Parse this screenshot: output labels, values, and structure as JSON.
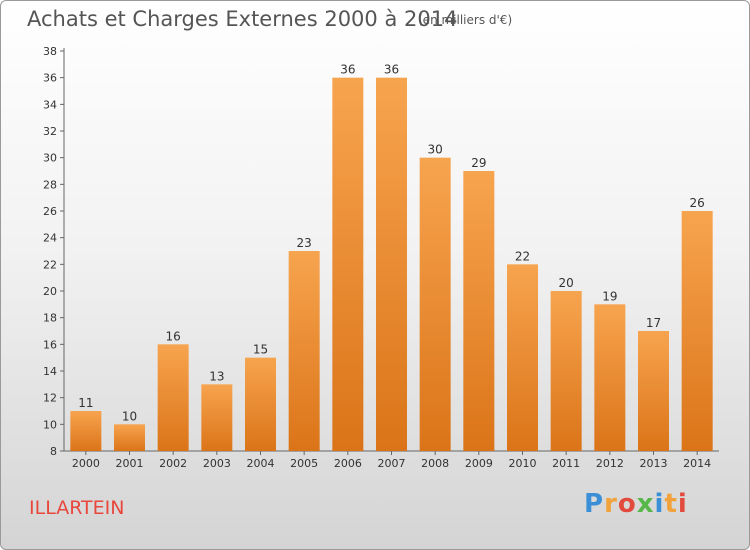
{
  "header": {
    "title": "Achats et Charges Externes 2000 à 2014",
    "subtitle": "(en milliers d'€)"
  },
  "commune": "ILLARTEIN",
  "logo": {
    "text": "Proxiti",
    "colors": [
      "#3a8fd6",
      "#f2a23a",
      "#e34a3e",
      "#57b84a"
    ]
  },
  "chart_data": {
    "type": "bar",
    "title": "Achats et Charges Externes 2000 à 2014",
    "subtitle": "(en milliers d'€)",
    "xlabel": "",
    "ylabel": "",
    "categories": [
      "2000",
      "2001",
      "2002",
      "2003",
      "2004",
      "2005",
      "2006",
      "2007",
      "2008",
      "2009",
      "2010",
      "2011",
      "2012",
      "2013",
      "2014"
    ],
    "values": [
      11,
      10,
      16,
      13,
      15,
      23,
      36,
      36,
      30,
      29,
      22,
      20,
      19,
      17,
      26
    ],
    "ylim": [
      8,
      38
    ],
    "yticks": [
      8,
      10,
      12,
      14,
      16,
      18,
      20,
      22,
      24,
      26,
      28,
      30,
      32,
      34,
      36,
      38
    ],
    "grid": false,
    "bar_color_top": "#f7a44f",
    "bar_color_bottom": "#db7418"
  }
}
